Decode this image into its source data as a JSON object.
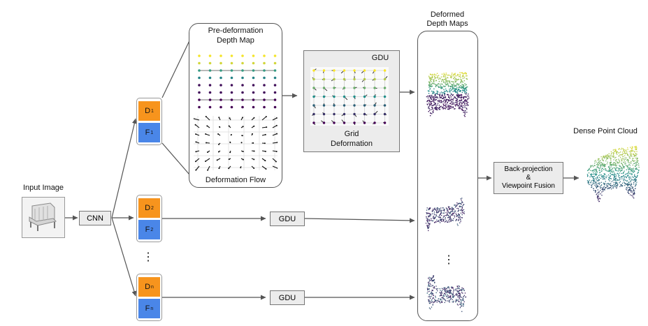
{
  "labels": {
    "input_image": "Input Image",
    "cnn": "CNN",
    "pre_deformation_line1": "Pre-deformation",
    "pre_deformation_line2": "Depth Map",
    "deformation_flow": "Deformation Flow",
    "gdu": "GDU",
    "grid_deformation_line1": "Grid",
    "grid_deformation_line2": "Deformation",
    "deformed_line1": "Deformed",
    "deformed_line2": "Depth Maps",
    "back_projection_line1": "Back-projection",
    "back_projection_line2": "&",
    "back_projection_line3": "Viewpoint Fusion",
    "dense_point_cloud": "Dense Point Cloud",
    "ellipsis": "⋮"
  },
  "branches": [
    {
      "d": "D",
      "f": "F",
      "sub": "1"
    },
    {
      "d": "D",
      "f": "F",
      "sub": "2"
    },
    {
      "d": "D",
      "f": "F",
      "sub": "n"
    }
  ],
  "colors": {
    "tile_d": "#f7941d",
    "tile_f": "#4a86e8",
    "viridis_low": "#440154",
    "viridis_mid": "#21918c",
    "viridis_high": "#fde725"
  }
}
